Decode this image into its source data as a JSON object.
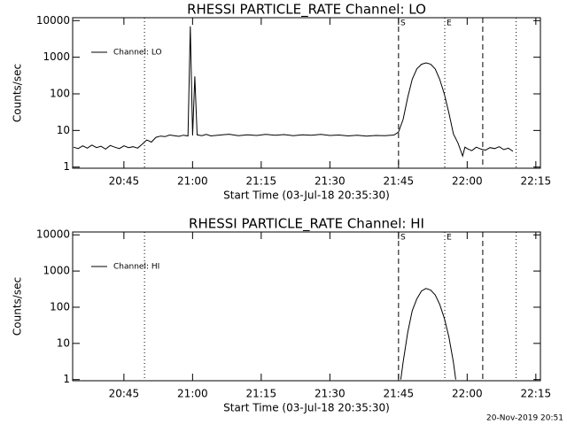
{
  "chart_data": [
    {
      "type": "line",
      "title": "RHESSI PARTICLE_RATE Channel: LO",
      "xlabel": "Start Time (03-Jul-18 20:35:30)",
      "ylabel": "Counts/sec",
      "log_y": true,
      "ylim": [
        0.93,
        12000
      ],
      "yticks": [
        1,
        10,
        100,
        1000,
        10000
      ],
      "xlim": [
        33.8,
        136
      ],
      "xticks": [
        {
          "value": 45,
          "label": "20:45"
        },
        {
          "value": 60,
          "label": "21:00"
        },
        {
          "value": 75,
          "label": "21:15"
        },
        {
          "value": 90,
          "label": "21:30"
        },
        {
          "value": 105,
          "label": "21:45"
        },
        {
          "value": 120,
          "label": "22:00"
        },
        {
          "value": 135,
          "label": "22:15"
        }
      ],
      "vlines": [
        {
          "x": 49.5,
          "style": "dotted"
        },
        {
          "x": 105,
          "style": "dashed",
          "label": "S"
        },
        {
          "x": 115.1,
          "style": "dotted",
          "label": "E"
        },
        {
          "x": 123.4,
          "style": "dashed"
        },
        {
          "x": 130.7,
          "style": "dotted"
        }
      ],
      "legend": "upper left",
      "series": [
        {
          "name": "Channel: LO",
          "color": "#000000",
          "x": [
            34,
            35,
            36,
            37,
            38,
            39,
            40,
            41,
            42,
            43,
            44,
            45,
            46,
            47,
            48,
            49,
            50,
            51,
            52,
            53,
            54,
            55,
            56,
            57,
            58,
            59,
            59.5,
            60,
            60.5,
            61,
            62,
            63,
            64,
            66,
            68,
            70,
            72,
            74,
            76,
            78,
            80,
            82,
            84,
            86,
            88,
            90,
            92,
            94,
            96,
            98,
            100,
            102,
            104,
            105,
            106,
            107,
            108,
            109,
            110,
            111,
            112,
            113,
            114,
            115,
            116,
            117,
            118,
            118.5,
            119,
            119.5,
            120,
            121,
            122,
            123,
            124,
            125,
            126,
            127,
            128,
            129,
            130
          ],
          "values": [
            3.5,
            3.2,
            3.8,
            3.3,
            4,
            3.4,
            3.7,
            3.1,
            3.9,
            3.5,
            3.2,
            3.8,
            3.4,
            3.6,
            3.3,
            4.2,
            5.5,
            4.8,
            6.5,
            7,
            6.8,
            7.5,
            7.2,
            6.9,
            7.4,
            7.1,
            7000,
            7.3,
            300,
            7.6,
            7.2,
            7.8,
            7.1,
            7.5,
            7.9,
            7.2,
            7.6,
            7.3,
            7.8,
            7.4,
            7.7,
            7.2,
            7.6,
            7.4,
            7.8,
            7.3,
            7.5,
            7.1,
            7.4,
            7.0,
            7.3,
            7.2,
            7.5,
            9,
            20,
            80,
            250,
            480,
            640,
            700,
            650,
            480,
            250,
            100,
            30,
            8,
            4.5,
            3,
            2,
            3.5,
            3.2,
            2.8,
            3.5,
            3.1,
            2.9,
            3.4,
            3.2,
            3.6,
            3.0,
            3.3,
            2.7
          ]
        }
      ]
    },
    {
      "type": "line",
      "title": "RHESSI PARTICLE_RATE Channel: HI",
      "xlabel": "Start Time (03-Jul-18 20:35:30)",
      "ylabel": "Counts/sec",
      "log_y": true,
      "ylim": [
        0.93,
        12000
      ],
      "yticks": [
        1,
        10,
        100,
        1000,
        10000
      ],
      "xlim": [
        33.8,
        136
      ],
      "xticks": [
        {
          "value": 45,
          "label": "20:45"
        },
        {
          "value": 60,
          "label": "21:00"
        },
        {
          "value": 75,
          "label": "21:15"
        },
        {
          "value": 90,
          "label": "21:30"
        },
        {
          "value": 105,
          "label": "21:45"
        },
        {
          "value": 120,
          "label": "22:00"
        },
        {
          "value": 135,
          "label": "22:15"
        }
      ],
      "vlines": [
        {
          "x": 49.5,
          "style": "dotted"
        },
        {
          "x": 105,
          "style": "dashed",
          "label": "S"
        },
        {
          "x": 115.1,
          "style": "dotted",
          "label": "E"
        },
        {
          "x": 123.4,
          "style": "dashed"
        },
        {
          "x": 130.7,
          "style": "dotted"
        }
      ],
      "legend": "upper left",
      "series": [
        {
          "name": "Channel: HI",
          "color": "#000000",
          "x": [
            105.5,
            106,
            107,
            108,
            109,
            110,
            111,
            112,
            113,
            114,
            115,
            116,
            117,
            117.5
          ],
          "values": [
            1,
            3,
            20,
            80,
            170,
            280,
            330,
            300,
            220,
            120,
            50,
            15,
            3,
            1
          ]
        }
      ]
    }
  ],
  "footer": "20-Nov-2019 20:51"
}
